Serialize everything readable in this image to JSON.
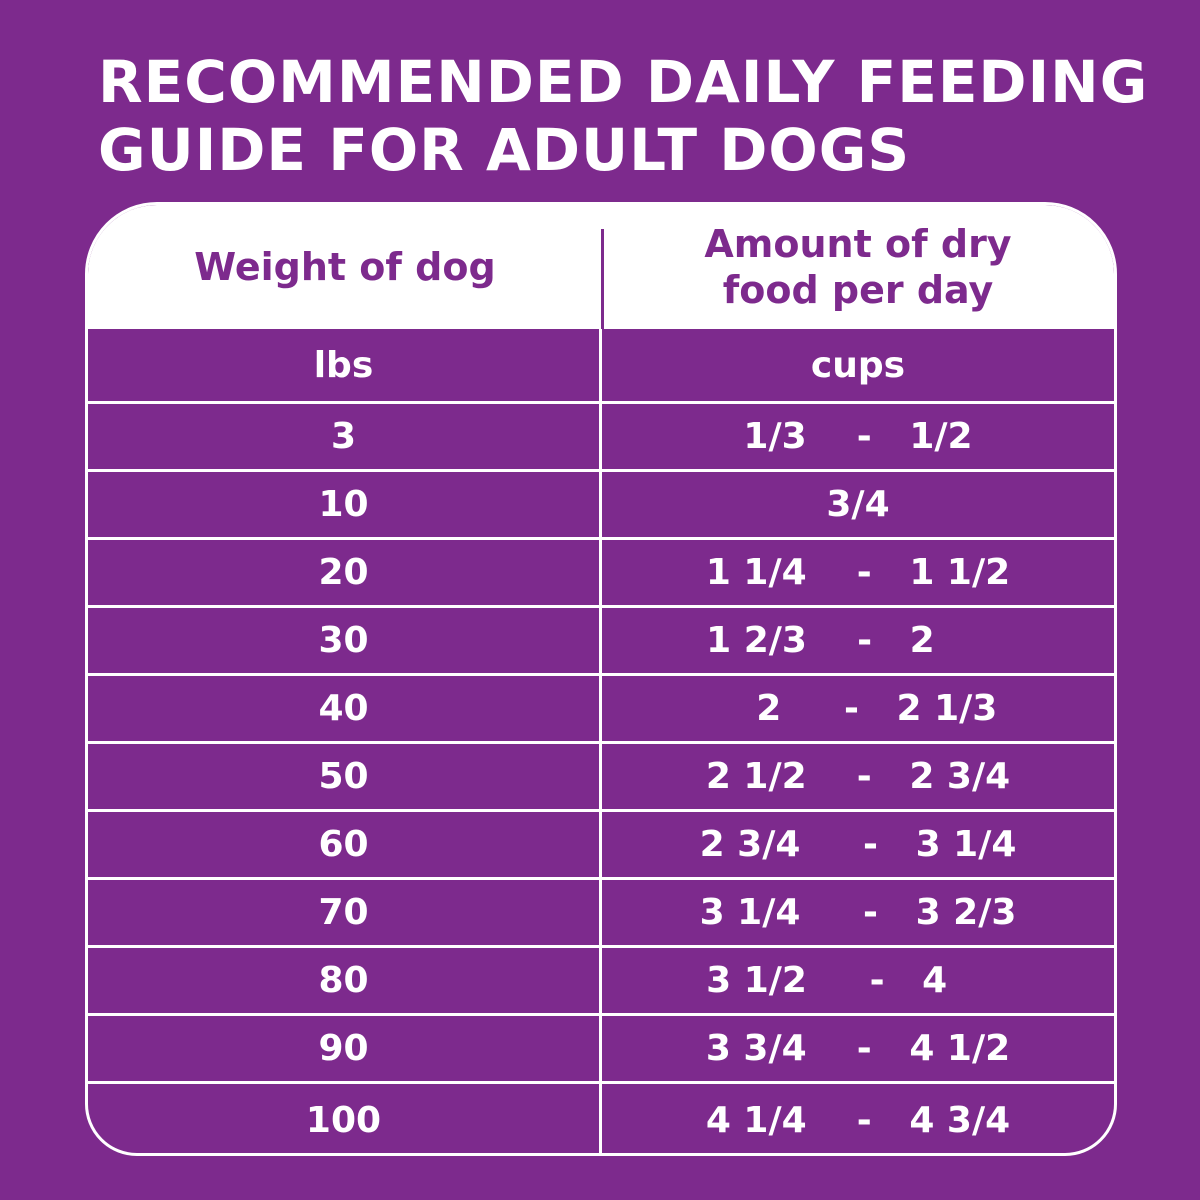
{
  "title_lines": [
    "RECOMMENDED DAILY FEEDING",
    "GUIDE FOR ADULT DOGS"
  ],
  "table": {
    "headers": [
      "Weight of dog",
      "Amount of dry\nfood per day"
    ],
    "units": [
      "lbs",
      "cups"
    ],
    "rows": [
      {
        "weight": "3",
        "amount": "1/3    -   1/2"
      },
      {
        "weight": "10",
        "amount": "3/4"
      },
      {
        "weight": "20",
        "amount": "1 1/4    -   1 1/2"
      },
      {
        "weight": "30",
        "amount": "1 2/3    -   2      "
      },
      {
        "weight": "40",
        "amount": "   2     -   2 1/3"
      },
      {
        "weight": "50",
        "amount": "2 1/2    -   2 3/4"
      },
      {
        "weight": "60",
        "amount": "2 3/4     -   3 1/4"
      },
      {
        "weight": "70",
        "amount": "3 1/4     -   3 2/3"
      },
      {
        "weight": "80",
        "amount": "3 1/2     -   4     "
      },
      {
        "weight": "90",
        "amount": "3 3/4    -   4 1/2"
      },
      {
        "weight": "100",
        "amount": "4 1/4    -   4 3/4"
      }
    ]
  },
  "colors": {
    "background": "#7d2a8d",
    "header_bg": "#ffffff",
    "text": "#ffffff"
  }
}
